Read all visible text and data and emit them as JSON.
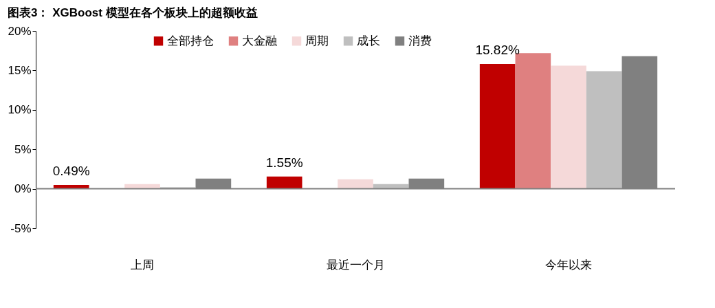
{
  "chart_data": {
    "type": "bar",
    "title": "图表3： XGBoost 模型在各个板块上的超额收益",
    "categories": [
      "上周",
      "最近一个月",
      "今年以来"
    ],
    "series": [
      {
        "name": "全部持仓",
        "color": "#c00000",
        "values": [
          0.49,
          1.55,
          15.82
        ],
        "value_labels": [
          "0.49%",
          "1.55%",
          "15.82%"
        ]
      },
      {
        "name": "大金融",
        "color": "#df8080",
        "values": [
          0,
          0,
          17.2
        ]
      },
      {
        "name": "周期",
        "color": "#f5d9d9",
        "values": [
          0.6,
          1.2,
          15.6
        ]
      },
      {
        "name": "成长",
        "color": "#bfbfbf",
        "values": [
          0.2,
          0.6,
          14.9
        ]
      },
      {
        "name": "消费",
        "color": "#808080",
        "values": [
          1.3,
          1.3,
          16.8
        ]
      }
    ],
    "ylim": [
      -5,
      20
    ],
    "yticks": [
      {
        "value": -5,
        "label": "-5%"
      },
      {
        "value": 0,
        "label": "0%"
      },
      {
        "value": 5,
        "label": "5%"
      },
      {
        "value": 10,
        "label": "10%"
      },
      {
        "value": 15,
        "label": "15%"
      },
      {
        "value": 20,
        "label": "20%"
      }
    ],
    "ref_lines": [
      {
        "axis": "y",
        "value": 0,
        "color": "#808080"
      }
    ],
    "grid": false,
    "legend": "top"
  }
}
